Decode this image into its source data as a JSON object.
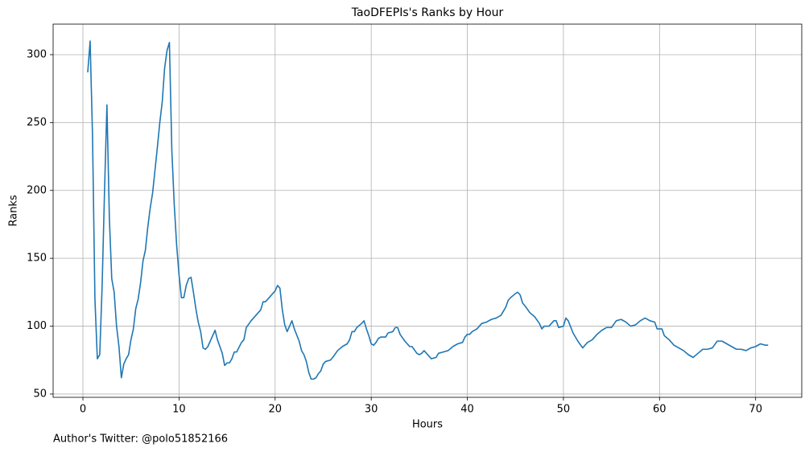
{
  "chart_data": {
    "type": "line",
    "title": "TaoDFEPIs's Ranks by Hour",
    "xlabel": "Hours",
    "ylabel": "Ranks",
    "footer": "Author's Twitter: @polo51852166",
    "x": [
      0.5,
      0.75,
      1.0,
      1.25,
      1.5,
      1.75,
      2.0,
      2.25,
      2.5,
      2.75,
      3.0,
      3.25,
      3.5,
      3.75,
      4.0,
      4.25,
      4.5,
      4.75,
      5.0,
      5.25,
      5.5,
      5.75,
      6.0,
      6.25,
      6.5,
      6.75,
      7.0,
      7.25,
      7.5,
      7.75,
      8.0,
      8.25,
      8.5,
      8.75,
      9.0,
      9.25,
      9.5,
      9.75,
      10.0,
      10.25,
      10.5,
      10.75,
      11.0,
      11.25,
      11.5,
      11.75,
      12.0,
      12.25,
      12.5,
      12.75,
      13.0,
      13.5,
      13.75,
      14.0,
      14.5,
      14.75,
      15.0,
      15.25,
      15.5,
      15.75,
      16.0,
      16.5,
      16.75,
      17.0,
      17.5,
      18.0,
      18.5,
      18.75,
      19.0,
      19.5,
      20.0,
      20.25,
      20.5,
      20.75,
      21.0,
      21.25,
      21.5,
      21.75,
      22.0,
      22.5,
      22.75,
      23.0,
      23.25,
      23.5,
      23.75,
      24.0,
      24.25,
      24.5,
      24.75,
      25.0,
      25.25,
      25.75,
      26.0,
      26.5,
      27.0,
      27.5,
      27.75,
      28.0,
      28.25,
      28.5,
      29.0,
      29.25,
      29.5,
      29.75,
      30.0,
      30.25,
      30.5,
      30.75,
      31.0,
      31.5,
      31.75,
      32.25,
      32.5,
      32.75,
      33.0,
      33.5,
      34.0,
      34.25,
      34.75,
      35.0,
      35.25,
      35.5,
      36.0,
      36.25,
      36.75,
      37.0,
      37.5,
      38.0,
      38.5,
      39.0,
      39.5,
      39.75,
      40.0,
      40.25,
      40.5,
      41.0,
      41.5,
      42.0,
      42.5,
      43.0,
      43.5,
      44.0,
      44.25,
      44.5,
      45.0,
      45.25,
      45.5,
      45.75,
      46.0,
      46.5,
      47.0,
      47.5,
      47.75,
      48.0,
      48.5,
      49.0,
      49.25,
      49.5,
      50.0,
      50.25,
      50.5,
      51.0,
      51.5,
      52.0,
      52.25,
      52.5,
      53.0,
      53.5,
      54.0,
      54.5,
      55.0,
      55.5,
      56.0,
      56.5,
      57.0,
      57.5,
      58.0,
      58.5,
      59.0,
      59.5,
      59.75,
      60.0,
      60.25,
      60.5,
      61.0,
      61.5,
      62.0,
      62.5,
      63.0,
      63.5,
      64.0,
      64.5,
      65.0,
      65.5,
      66.0,
      66.5,
      67.0,
      67.5,
      68.0,
      68.5,
      69.0,
      69.5,
      70.0,
      70.5,
      71.0,
      71.3
    ],
    "series": [
      {
        "name": "Ranks",
        "color": "#1f77b4",
        "values": [
          287,
          310,
          240,
          120,
          76,
          79,
          130,
          200,
          263,
          180,
          135,
          125,
          100,
          85,
          62,
          72,
          76,
          79,
          90,
          98,
          113,
          120,
          132,
          148,
          156,
          173,
          187,
          198,
          215,
          232,
          250,
          265,
          290,
          303,
          309,
          230,
          190,
          160,
          138,
          121,
          121,
          130,
          135,
          136,
          125,
          113,
          103,
          96,
          84,
          83,
          85,
          93,
          97,
          90,
          80,
          71,
          73,
          73,
          76,
          81,
          81,
          88,
          90,
          99,
          104,
          108,
          112,
          118,
          118,
          122,
          126,
          130,
          128,
          112,
          101,
          96,
          100,
          104,
          98,
          89,
          82,
          79,
          74,
          66,
          61,
          61,
          62,
          65,
          67,
          72,
          74,
          75,
          77,
          82,
          85,
          87,
          90,
          96,
          96,
          99,
          102,
          104,
          98,
          93,
          87,
          86,
          88,
          91,
          92,
          92,
          95,
          96,
          99,
          99,
          94,
          89,
          85,
          85,
          80,
          79,
          80,
          82,
          78,
          76,
          77,
          80,
          81,
          82,
          85,
          87,
          88,
          92,
          94,
          94,
          96,
          98,
          102,
          103,
          105,
          106,
          108,
          114,
          119,
          121,
          124,
          125,
          123,
          117,
          115,
          110,
          107,
          102,
          98,
          100,
          100,
          104,
          104,
          99,
          100,
          106,
          104,
          95,
          89,
          84,
          86,
          88,
          90,
          94,
          97,
          99,
          99,
          104,
          105,
          103,
          100,
          101,
          104,
          106,
          104,
          103,
          98,
          98,
          98,
          93,
          90,
          86,
          84,
          82,
          79,
          77,
          80,
          83,
          83,
          84,
          89,
          89,
          87,
          85,
          83,
          83,
          82,
          84,
          85,
          87,
          86,
          86
        ]
      }
    ],
    "xlim": [
      -3.1,
      74.8
    ],
    "ylim": [
      47.6,
      322.5
    ],
    "xticks": [
      0,
      10,
      20,
      30,
      40,
      50,
      60,
      70
    ],
    "yticks": [
      50,
      100,
      150,
      200,
      250,
      300
    ],
    "grid": true
  }
}
